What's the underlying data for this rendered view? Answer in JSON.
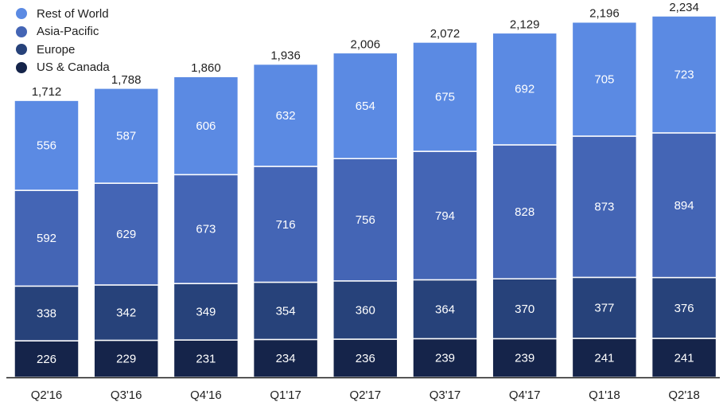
{
  "chart_data": {
    "type": "bar",
    "stacked": true,
    "categories": [
      "Q2'16",
      "Q3'16",
      "Q4'16",
      "Q1'17",
      "Q2'17",
      "Q3'17",
      "Q4'17",
      "Q1'18",
      "Q2'18"
    ],
    "series": [
      {
        "name": "US & Canada",
        "color": "#15244a",
        "values": [
          226,
          229,
          231,
          234,
          236,
          239,
          239,
          241,
          241
        ]
      },
      {
        "name": "Europe",
        "color": "#27427a",
        "values": [
          338,
          342,
          349,
          354,
          360,
          364,
          370,
          377,
          376
        ]
      },
      {
        "name": "Asia-Pacific",
        "color": "#4465b5",
        "values": [
          592,
          629,
          673,
          716,
          756,
          794,
          828,
          873,
          894
        ]
      },
      {
        "name": "Rest of World",
        "color": "#5b8ae3",
        "values": [
          556,
          587,
          606,
          632,
          654,
          675,
          692,
          705,
          723
        ]
      }
    ],
    "totals": [
      "1,712",
      "1,788",
      "1,860",
      "1,936",
      "2,006",
      "2,072",
      "2,129",
      "2,196",
      "2,234"
    ],
    "legend": [
      "Rest of World",
      "Asia-Pacific",
      "Europe",
      "US & Canada"
    ],
    "legend_position": "top-left",
    "ylim": [
      0,
      2234
    ],
    "grid": false,
    "title": "",
    "xlabel": "",
    "ylabel": ""
  }
}
